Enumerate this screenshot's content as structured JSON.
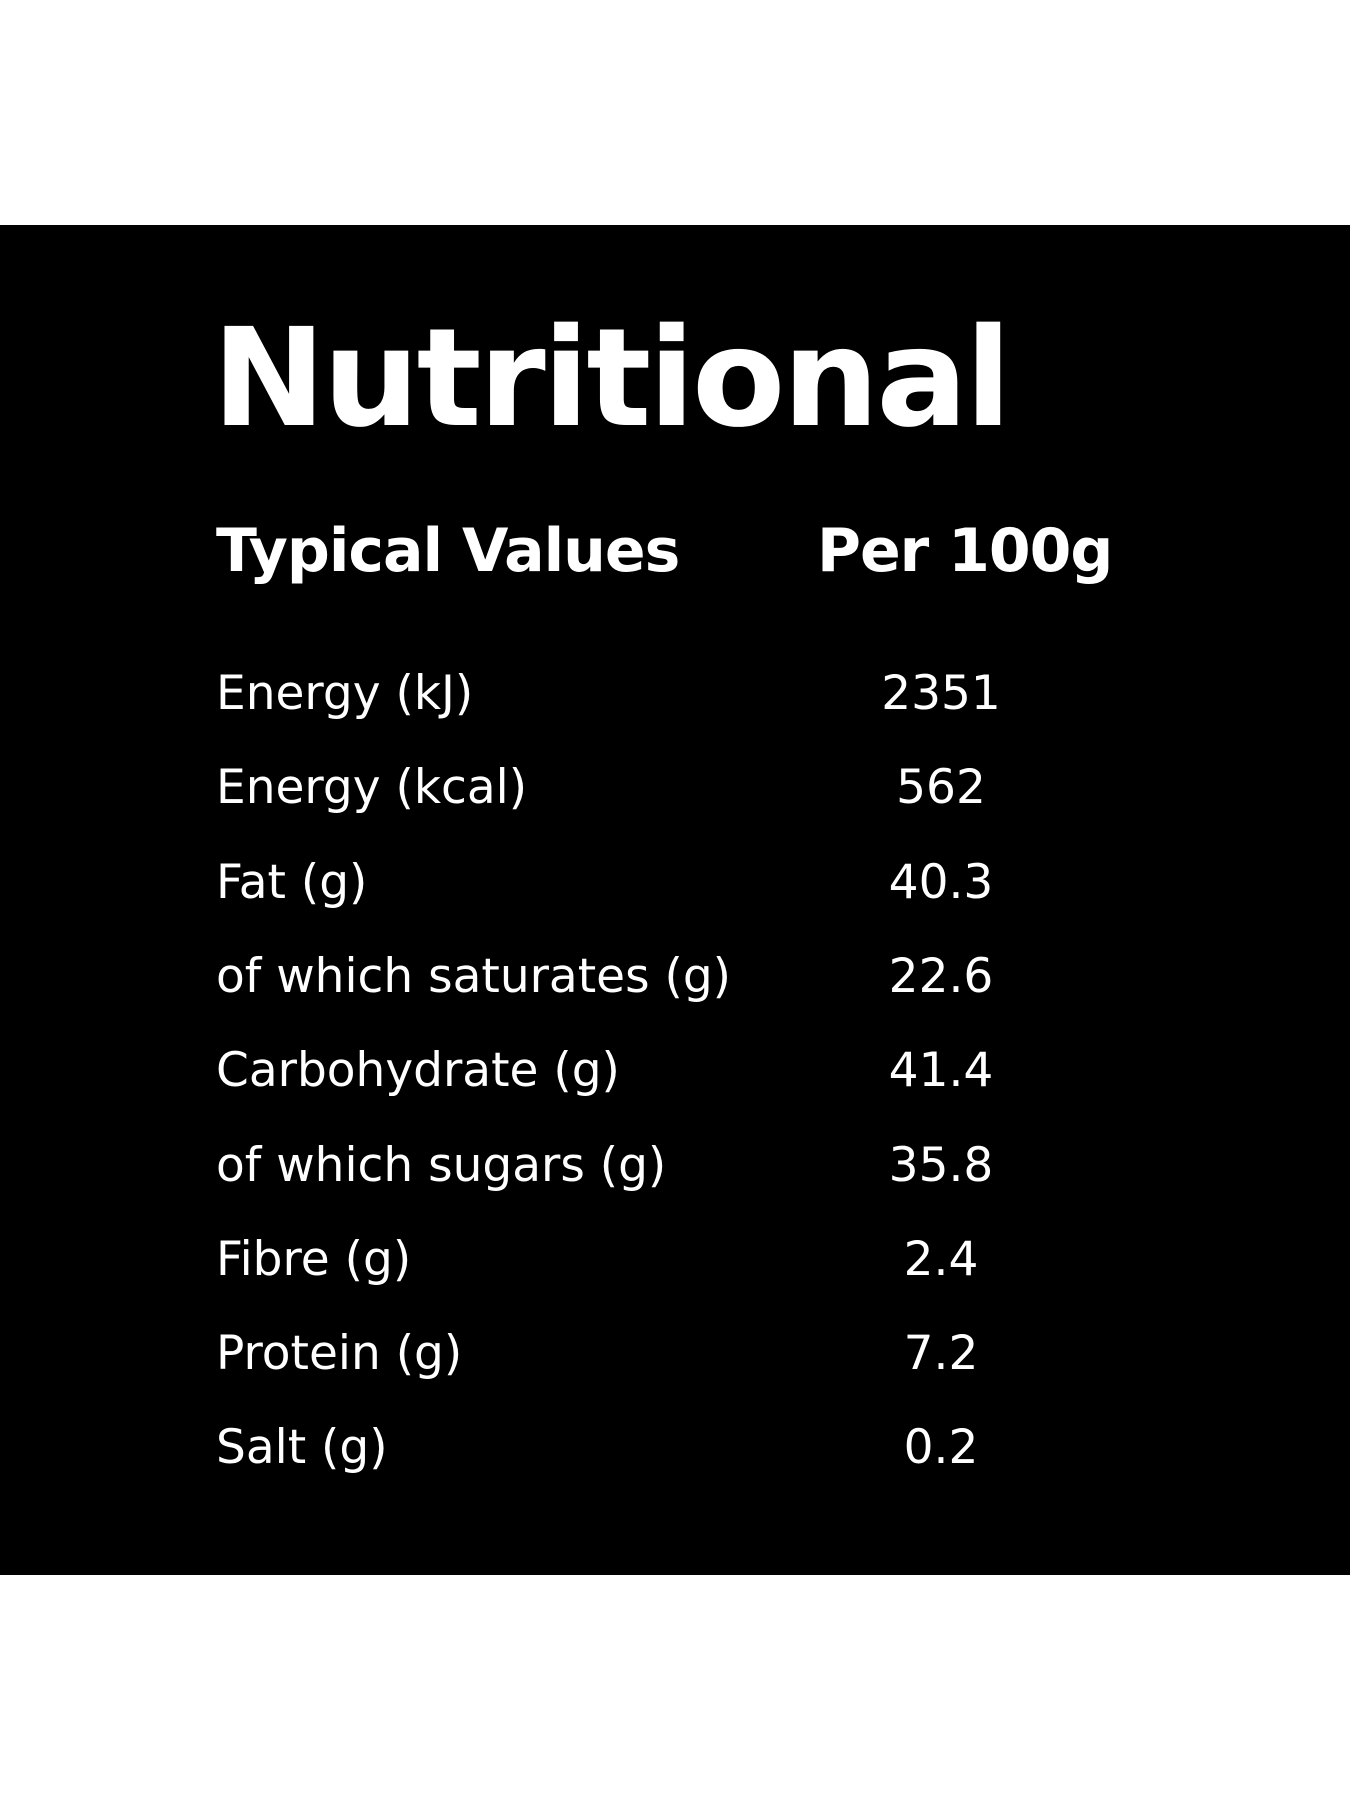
{
  "title": "Nutritional",
  "table": {
    "header": [
      "Typical Values",
      "Per 100g"
    ],
    "rows": [
      [
        "Energy (kJ)",
        2351
      ],
      [
        "Energy (kcal)",
        562
      ],
      [
        "Fat (g)",
        40.3
      ],
      [
        "of which saturates (g)",
        22.6
      ],
      [
        "Carbohydrate (g)",
        41.4
      ],
      [
        "of which sugars (g)",
        35.8
      ],
      [
        "Fibre (g)",
        2.4
      ],
      [
        "Protein (g)",
        7.2
      ],
      [
        "Salt (g)",
        0.2
      ]
    ]
  }
}
